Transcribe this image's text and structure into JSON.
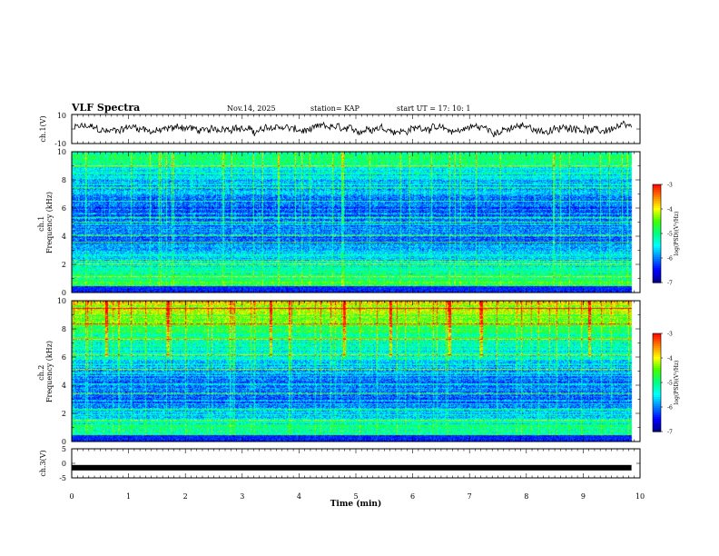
{
  "header": {
    "title": "VLF Spectra",
    "date": "Nov.14, 2025",
    "station": "station= KAP",
    "start_ut": "start  UT =   17: 10: 1"
  },
  "colors": {
    "background": "#ffffff",
    "axis": "#000000",
    "trace": "#000000",
    "colormap": [
      "#000080",
      "#0000ff",
      "#0080ff",
      "#00ffff",
      "#00ff80",
      "#40ff00",
      "#ffff00",
      "#ff8000",
      "#ff0000",
      "#ffffff"
    ]
  },
  "chart_data": [
    {
      "type": "line",
      "name": "ch.1 waveform",
      "ylabel": "ch.1(V)",
      "ylim": [
        -10,
        10
      ],
      "yticks": [
        "10",
        "-10"
      ],
      "xlim": [
        0,
        10
      ],
      "approx_range": [
        -7,
        7
      ],
      "note": "dense noisy trace centered near 0 V from 0 to 9.85 min"
    },
    {
      "type": "heatmap",
      "name": "ch.1 spectrogram",
      "ylabel": "ch.1\nFrequency (kHz)",
      "ylim": [
        0,
        10
      ],
      "yticks": [
        "0",
        "2",
        "4",
        "6",
        "8",
        "10"
      ],
      "xlim": [
        0,
        10
      ],
      "data_end_min": 9.85,
      "colorbar": {
        "label": "log(PSD)(V²/Hz)",
        "range": [
          -7,
          -3
        ],
        "ticks": [
          "-3",
          "-4",
          "-5",
          "-6",
          "-7"
        ]
      },
      "band_levels_by_khz": [
        -4.2,
        -5.0,
        -5.4,
        -5.8,
        -6.0,
        -5.9,
        -6.2,
        -5.8,
        -5.6,
        -5.2,
        -4.9
      ],
      "notable_lines_khz": [
        0.3,
        1.1,
        2.0,
        2.2,
        3.6,
        4.0,
        5.0,
        5.3,
        6.5,
        7.5,
        9.0
      ]
    },
    {
      "type": "heatmap",
      "name": "ch.2 spectrogram",
      "ylabel": "ch.2\nFrequency (kHz)",
      "ylim": [
        0,
        10
      ],
      "yticks": [
        "0",
        "2",
        "4",
        "6",
        "8",
        "10"
      ],
      "xlim": [
        0,
        10
      ],
      "data_end_min": 9.85,
      "colorbar": {
        "label": "log(PSD)(V²/Hz)",
        "range": [
          -7,
          -3
        ],
        "ticks": [
          "-3",
          "-4",
          "-5",
          "-6",
          "-7"
        ]
      },
      "band_levels_by_khz": [
        -4.6,
        -5.1,
        -5.6,
        -6.0,
        -6.1,
        -5.7,
        -5.5,
        -5.2,
        -4.8,
        -4.4,
        -4.0
      ],
      "notable_lines_khz": [
        0.3,
        1.5,
        2.3,
        3.4,
        4.1,
        5.1,
        6.2,
        7.3,
        8.4,
        9.5
      ],
      "bursts_min": [
        0.6,
        1.7,
        3.5,
        4.8,
        5.6,
        6.65,
        7.2,
        9.1
      ]
    },
    {
      "type": "line",
      "name": "ch.3 level",
      "ylabel": "ch.3(V)",
      "ylim": [
        -5,
        5
      ],
      "yticks": [
        "5",
        "0",
        "-5"
      ],
      "xlim": [
        0,
        10
      ],
      "constant_value": -1.5,
      "data_end_min": 9.85
    }
  ],
  "xaxis": {
    "label": "Time  (min)",
    "ticks": [
      "0",
      "1",
      "2",
      "3",
      "4",
      "5",
      "6",
      "7",
      "8",
      "9",
      "10"
    ]
  }
}
